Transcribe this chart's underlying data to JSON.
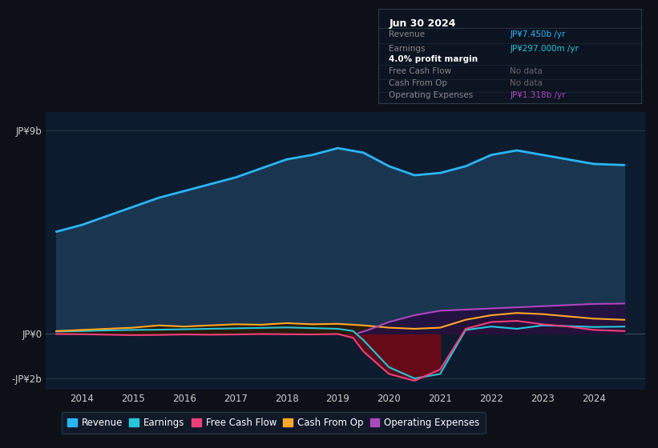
{
  "background_color": "#0d1117",
  "chart_bg_color": "#0d1b2e",
  "ylim": [
    -2500000000.0,
    9800000000.0
  ],
  "xlim_start": 2013.3,
  "xlim_end": 2025.0,
  "xticks": [
    2014,
    2015,
    2016,
    2017,
    2018,
    2019,
    2020,
    2021,
    2022,
    2023,
    2024
  ],
  "legend": [
    {
      "label": "Revenue",
      "color": "#29b6f6"
    },
    {
      "label": "Earnings",
      "color": "#26c6da"
    },
    {
      "label": "Free Cash Flow",
      "color": "#ec407a"
    },
    {
      "label": "Cash From Op",
      "color": "#ffa726"
    },
    {
      "label": "Operating Expenses",
      "color": "#ab47bc"
    }
  ],
  "revenue_x": [
    2013.5,
    2014.0,
    2014.5,
    2015.0,
    2015.5,
    2016.0,
    2016.5,
    2017.0,
    2017.5,
    2018.0,
    2018.5,
    2019.0,
    2019.5,
    2020.0,
    2020.5,
    2021.0,
    2021.5,
    2022.0,
    2022.5,
    2023.0,
    2023.5,
    2024.0,
    2024.6
  ],
  "revenue_y": [
    4500000000.0,
    4800000000.0,
    5200000000.0,
    5600000000.0,
    6000000000.0,
    6300000000.0,
    6600000000.0,
    6900000000.0,
    7300000000.0,
    7700000000.0,
    7900000000.0,
    8200000000.0,
    8000000000.0,
    7400000000.0,
    7000000000.0,
    7100000000.0,
    7400000000.0,
    7900000000.0,
    8100000000.0,
    7900000000.0,
    7700000000.0,
    7500000000.0,
    7450000000.0
  ],
  "revenue_color": "#29b6f6",
  "revenue_fill": "#1a3550",
  "earnings_x": [
    2013.5,
    2014.0,
    2014.5,
    2015.0,
    2015.5,
    2016.0,
    2016.5,
    2017.0,
    2017.5,
    2018.0,
    2018.5,
    2019.0,
    2019.3,
    2019.5,
    2020.0,
    2020.5,
    2021.0,
    2021.5,
    2022.0,
    2022.5,
    2023.0,
    2023.5,
    2024.0,
    2024.6
  ],
  "earnings_y": [
    80000000.0,
    100000000.0,
    130000000.0,
    150000000.0,
    160000000.0,
    180000000.0,
    200000000.0,
    220000000.0,
    240000000.0,
    260000000.0,
    230000000.0,
    200000000.0,
    100000000.0,
    -300000000.0,
    -1500000000.0,
    -2000000000.0,
    -1800000000.0,
    150000000.0,
    300000000.0,
    200000000.0,
    350000000.0,
    320000000.0,
    280000000.0,
    297000000.0
  ],
  "earnings_color": "#26c6da",
  "fcf_x": [
    2013.5,
    2014.0,
    2014.5,
    2015.0,
    2015.5,
    2016.0,
    2016.5,
    2017.0,
    2017.5,
    2018.0,
    2018.5,
    2019.0,
    2019.3,
    2019.5,
    2020.0,
    2020.5,
    2021.0,
    2021.5,
    2022.0,
    2022.5,
    2023.0,
    2023.5,
    2024.0,
    2024.6
  ],
  "fcf_y": [
    -30000000.0,
    -40000000.0,
    -60000000.0,
    -80000000.0,
    -70000000.0,
    -50000000.0,
    -60000000.0,
    -50000000.0,
    -30000000.0,
    -40000000.0,
    -50000000.0,
    -30000000.0,
    -200000000.0,
    -800000000.0,
    -1800000000.0,
    -2100000000.0,
    -1600000000.0,
    200000000.0,
    500000000.0,
    550000000.0,
    400000000.0,
    300000000.0,
    150000000.0,
    100000000.0
  ],
  "fcf_color": "#ec407a",
  "cfop_x": [
    2013.5,
    2014.0,
    2014.5,
    2015.0,
    2015.5,
    2016.0,
    2016.5,
    2017.0,
    2017.5,
    2018.0,
    2018.5,
    2019.0,
    2019.5,
    2020.0,
    2020.5,
    2021.0,
    2021.5,
    2022.0,
    2022.5,
    2023.0,
    2023.5,
    2024.0,
    2024.6
  ],
  "cfop_y": [
    100000000.0,
    150000000.0,
    200000000.0,
    250000000.0,
    350000000.0,
    300000000.0,
    350000000.0,
    400000000.0,
    380000000.0,
    450000000.0,
    400000000.0,
    420000000.0,
    350000000.0,
    250000000.0,
    200000000.0,
    250000000.0,
    600000000.0,
    800000000.0,
    900000000.0,
    850000000.0,
    750000000.0,
    650000000.0,
    600000000.0
  ],
  "cfop_color": "#ffa726",
  "opex_x": [
    2019.4,
    2019.6,
    2020.0,
    2020.5,
    2021.0,
    2021.5,
    2022.0,
    2022.5,
    2023.0,
    2023.5,
    2024.0,
    2024.6
  ],
  "opex_y": [
    10000000.0,
    150000000.0,
    500000000.0,
    800000000.0,
    1000000000.0,
    1050000000.0,
    1100000000.0,
    1150000000.0,
    1200000000.0,
    1250000000.0,
    1300000000.0,
    1318000000.0
  ],
  "opex_color": "#ab47bc",
  "tooltip": {
    "date": "Jun 30 2024",
    "rows": [
      {
        "label": "Revenue",
        "value": "JP¥7.450b /yr",
        "label_color": "#888888",
        "value_color": "#29b6f6"
      },
      {
        "label": "Earnings",
        "value": "JP¥297.000m /yr",
        "label_color": "#888888",
        "value_color": "#26c6da"
      },
      {
        "label": "",
        "value": "4.0% profit margin",
        "label_color": "#888888",
        "value_color": "#ffffff"
      },
      {
        "label": "Free Cash Flow",
        "value": "No data",
        "label_color": "#888888",
        "value_color": "#666666"
      },
      {
        "label": "Cash From Op",
        "value": "No data",
        "label_color": "#888888",
        "value_color": "#666666"
      },
      {
        "label": "Operating Expenses",
        "value": "JP¥1.318b /yr",
        "label_color": "#888888",
        "value_color": "#ab47bc"
      }
    ]
  }
}
